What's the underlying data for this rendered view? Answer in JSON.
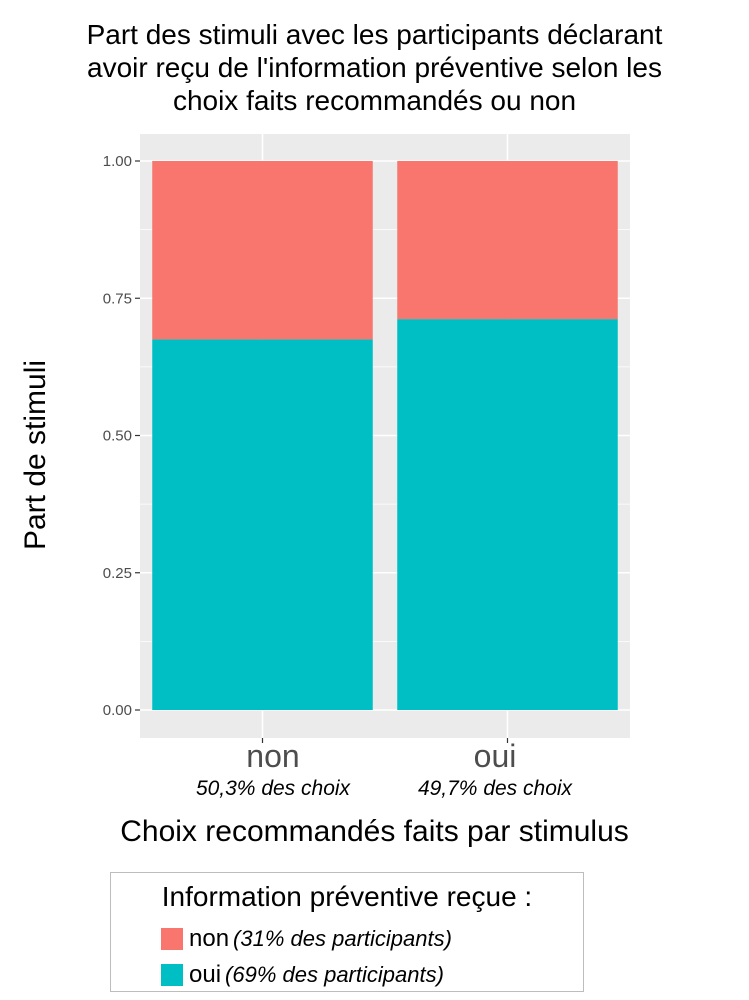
{
  "chart_data": {
    "type": "bar",
    "stacked": true,
    "title": [
      "Part des stimuli avec les participants déclarant",
      "avoir reçu de l'information préventive selon les",
      "choix faits recommandés ou non"
    ],
    "ylabel": "Part de stimuli",
    "xlabel": "Choix recommandés faits par stimulus",
    "ylim": [
      0,
      1
    ],
    "yticks": [
      "0.00",
      "0.25",
      "0.50",
      "0.75",
      "1.00"
    ],
    "ytick_values": [
      0,
      0.25,
      0.5,
      0.75,
      1
    ],
    "grid": true,
    "categories": [
      "non",
      "oui"
    ],
    "category_notes": [
      "50,3% des choix",
      "49,7% des choix"
    ],
    "series": [
      {
        "name": "oui",
        "note": "(69% des participants)",
        "color": "#00BFC4",
        "values": [
          0.675,
          0.712
        ]
      },
      {
        "name": "non",
        "note": "(31% des participants)",
        "color": "#F8766D",
        "values": [
          0.325,
          0.288
        ]
      }
    ],
    "legend": {
      "title": "Information préventive reçue :",
      "position": "bottom",
      "order": [
        "non",
        "oui"
      ]
    },
    "panel_color": "#EBEBEB",
    "grid_color": "#FFFFFF"
  }
}
